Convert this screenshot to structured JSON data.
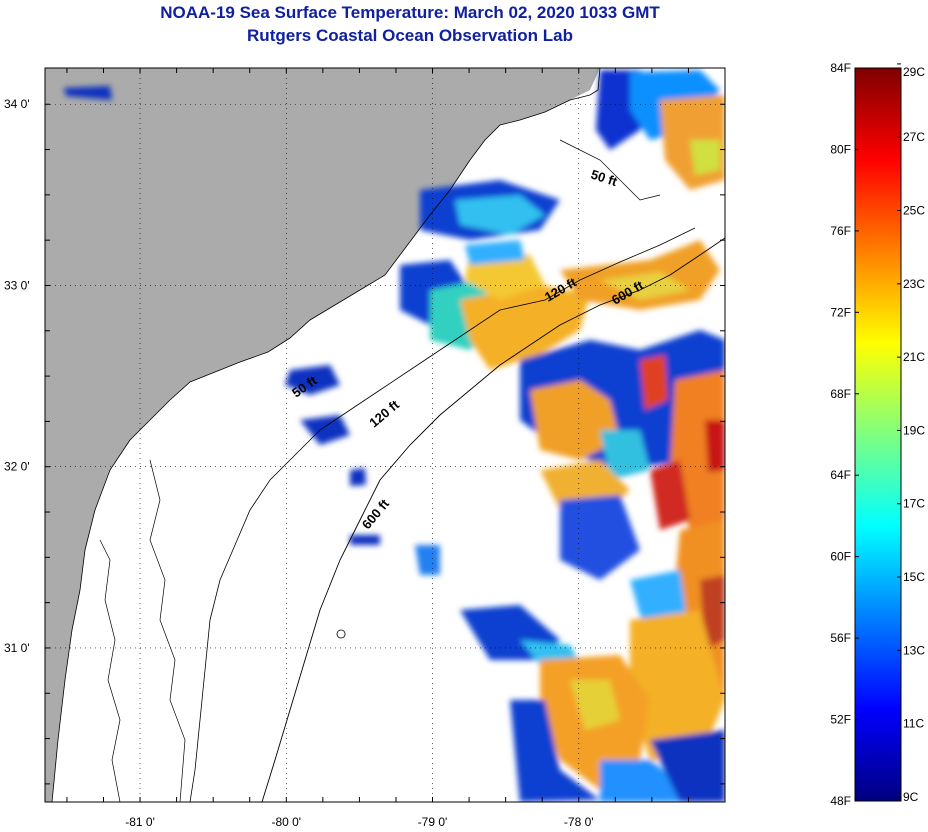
{
  "title": {
    "line1": "NOAA-19 Sea Surface Temperature:  March 02, 2020 1033 GMT",
    "line2": "Rutgers Coastal Ocean Observation Lab"
  },
  "map": {
    "lat_labels": [
      "34 0'",
      "33 0'",
      "32 0'",
      "31 0'"
    ],
    "lon_labels": [
      "-81 0'",
      "-80 0'",
      "-79 0'",
      "-78 0'"
    ],
    "lat_values": [
      34,
      33,
      32,
      31
    ],
    "lon_values": [
      -81,
      -80,
      -79,
      -78
    ],
    "lat_range": [
      30.15,
      34.2
    ],
    "lon_range": [
      -81.65,
      -77.0
    ],
    "contours": [
      {
        "label": "50 ft"
      },
      {
        "label": "120 ft"
      },
      {
        "label": "600 ft"
      },
      {
        "label": "50 ft"
      },
      {
        "label": "120 ft"
      },
      {
        "label": "600 ft"
      }
    ],
    "colors": {
      "land": "#ababab",
      "cloud": "#ffffff",
      "frame": "#000000"
    }
  },
  "colorbar": {
    "f_labels": [
      "84F",
      "80F",
      "76F",
      "72F",
      "68F",
      "64F",
      "60F",
      "56F",
      "52F",
      "48F"
    ],
    "c_labels": [
      "29C",
      "27C",
      "25C",
      "23C",
      "21C",
      "19C",
      "17C",
      "15C",
      "13C",
      "11C",
      "9C"
    ],
    "f_values": [
      84,
      80,
      76,
      72,
      68,
      64,
      60,
      56,
      52,
      48
    ],
    "c_values": [
      29,
      27,
      25,
      23,
      21,
      19,
      17,
      15,
      13,
      11,
      9
    ],
    "range_f": [
      48,
      84
    ],
    "stops": [
      "#00007f",
      "#0000ff",
      "#007fff",
      "#00ffff",
      "#7fff7f",
      "#ffff00",
      "#ff7f00",
      "#ff0000",
      "#7f0000"
    ]
  }
}
